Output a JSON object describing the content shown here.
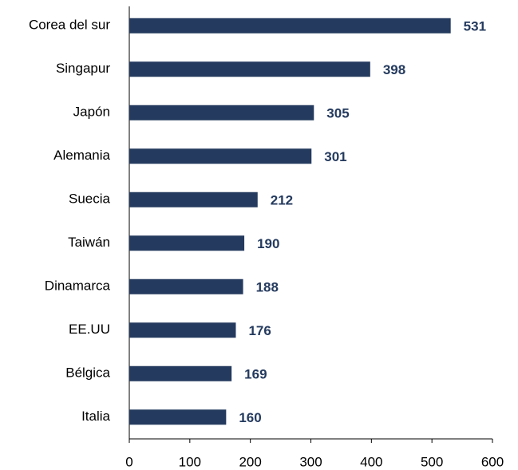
{
  "chart_data": {
    "type": "bar",
    "orientation": "horizontal",
    "categories": [
      "Corea del sur",
      "Singapur",
      "Japón",
      "Alemania",
      "Suecia",
      "Taiwán",
      "Dinamarca",
      "EE.UU",
      "Bélgica",
      "Italia"
    ],
    "values": [
      531,
      398,
      305,
      301,
      212,
      190,
      188,
      176,
      169,
      160
    ],
    "color": "#243a5e",
    "xlim": [
      0,
      600
    ],
    "xticks": [
      0,
      100,
      200,
      300,
      400,
      500,
      600
    ],
    "grid": false
  }
}
